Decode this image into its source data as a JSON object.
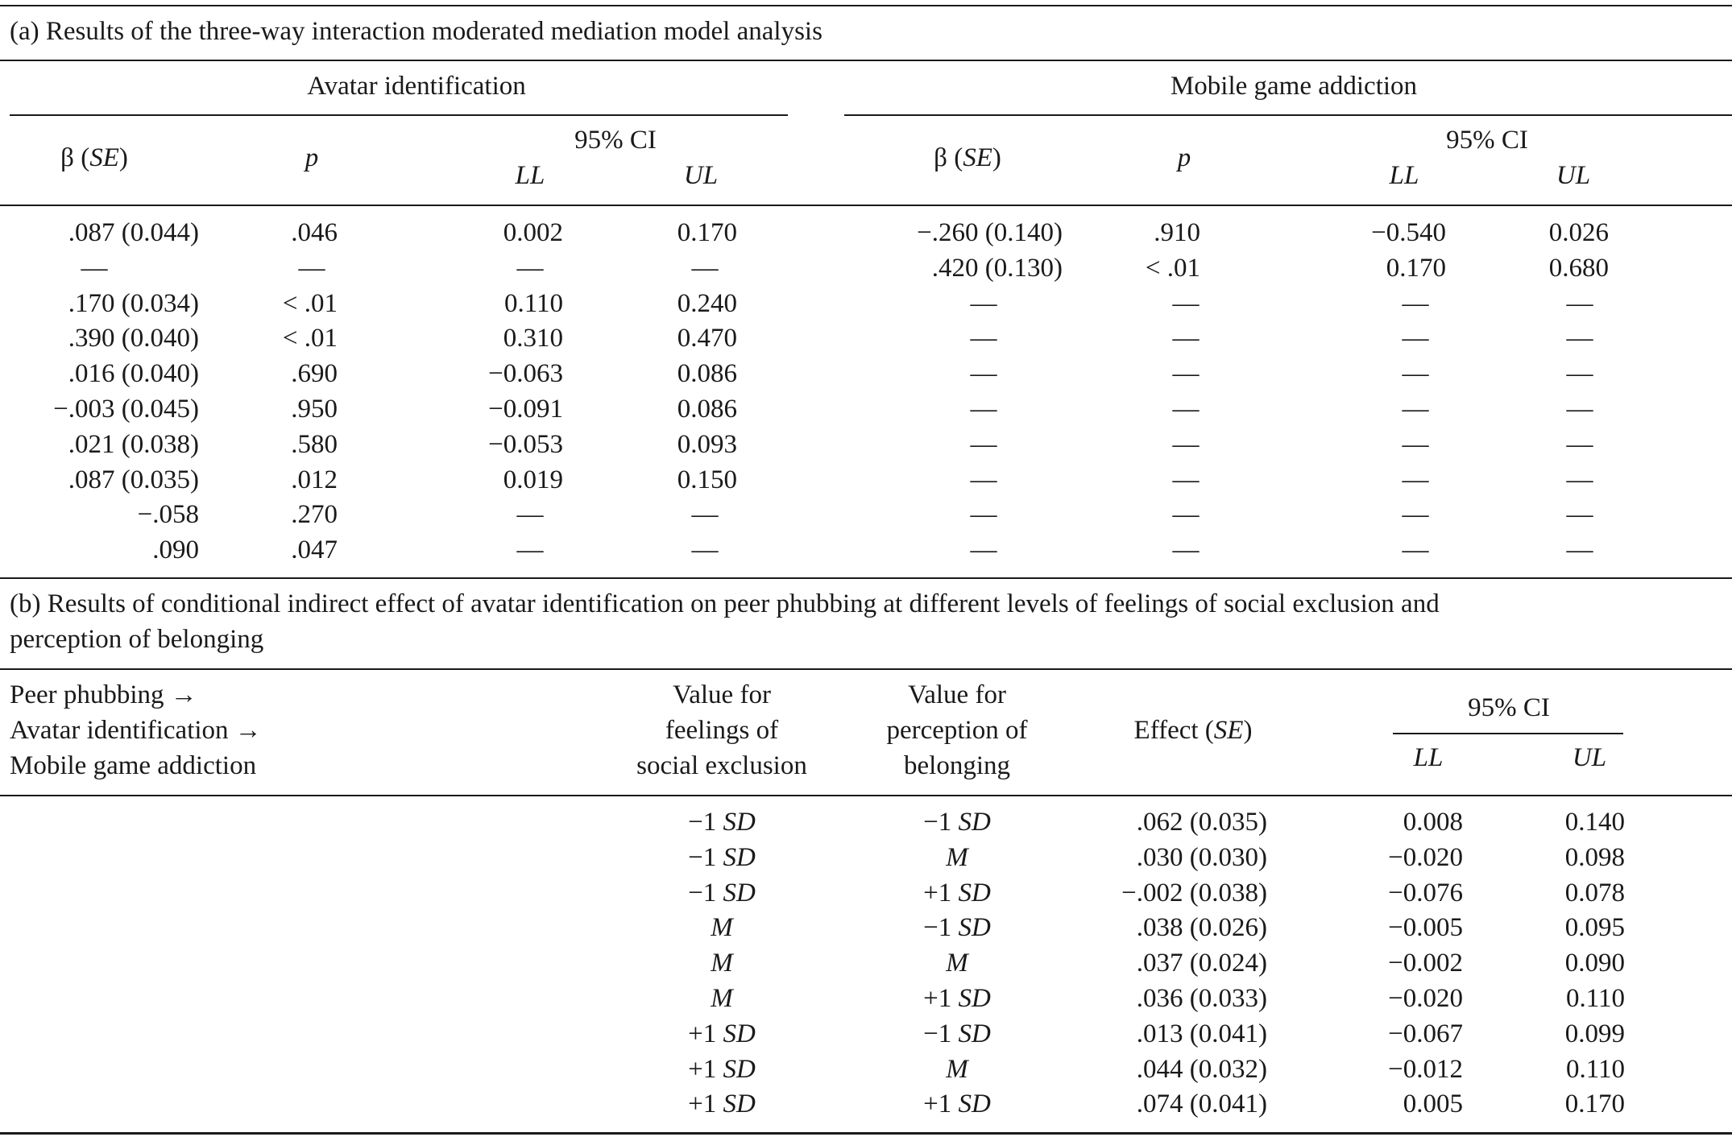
{
  "part_a": {
    "caption": "(a) Results of the three-way interaction moderated mediation model analysis",
    "group_headers": [
      "Avatar identification",
      "Mobile game addiction"
    ],
    "col_headers": {
      "beta": "β",
      "se": "SE",
      "p": "p",
      "ci": "95% CI",
      "ll": "LL",
      "ul": "UL"
    },
    "rows": [
      [
        ".087 (0.044)",
        ".046",
        "0.002",
        "0.170",
        "−.260 (0.140)",
        ".910",
        "−0.540",
        "0.026"
      ],
      [
        "—",
        "—",
        "—",
        "—",
        ".420 (0.130)",
        "< .01",
        "0.170",
        "0.680"
      ],
      [
        ".170 (0.034)",
        "< .01",
        "0.110",
        "0.240",
        "—",
        "—",
        "—",
        "—"
      ],
      [
        ".390 (0.040)",
        "< .01",
        "0.310",
        "0.470",
        "—",
        "—",
        "—",
        "—"
      ],
      [
        ".016 (0.040)",
        ".690",
        "−0.063",
        "0.086",
        "—",
        "—",
        "—",
        "—"
      ],
      [
        "−.003 (0.045)",
        ".950",
        "−0.091",
        "0.086",
        "—",
        "—",
        "—",
        "—"
      ],
      [
        ".021 (0.038)",
        ".580",
        "−0.053",
        "0.093",
        "—",
        "—",
        "—",
        "—"
      ],
      [
        ".087 (0.035)",
        ".012",
        "0.019",
        "0.150",
        "—",
        "—",
        "—",
        "—"
      ],
      [
        "−.058",
        ".270",
        "—",
        "—",
        "—",
        "—",
        "—",
        "—"
      ],
      [
        ".090",
        ".047",
        "—",
        "—",
        "—",
        "—",
        "—",
        "—"
      ]
    ]
  },
  "part_b": {
    "caption_line1": "(b) Results of conditional indirect effect of avatar identification on peer phubbing at different levels of feelings of social exclusion and",
    "caption_line2": "perception of belonging",
    "path_lines": [
      "Peer phubbing →",
      "Avatar identification →",
      "Mobile game addiction"
    ],
    "col_exclusion": [
      "Value for",
      "feelings of",
      "social exclusion"
    ],
    "col_belonging": [
      "Value for",
      "perception of",
      "belonging"
    ],
    "col_effect": "Effect",
    "col_se": "SE",
    "ci": "95% CI",
    "ll": "LL",
    "ul": "UL",
    "rows": [
      [
        [
          "−1 ",
          "SD"
        ],
        [
          "−1 ",
          "SD"
        ],
        ".062 (0.035)",
        "0.008",
        "0.140"
      ],
      [
        [
          "−1 ",
          "SD"
        ],
        [
          "",
          "M"
        ],
        ".030 (0.030)",
        "−0.020",
        "0.098"
      ],
      [
        [
          "−1 ",
          "SD"
        ],
        [
          "+1 ",
          "SD"
        ],
        "−.002 (0.038)",
        "−0.076",
        "0.078"
      ],
      [
        [
          "",
          "M"
        ],
        [
          "−1 ",
          "SD"
        ],
        ".038 (0.026)",
        "−0.005",
        "0.095"
      ],
      [
        [
          "",
          "M"
        ],
        [
          "",
          "M"
        ],
        ".037 (0.024)",
        "−0.002",
        "0.090"
      ],
      [
        [
          "",
          "M"
        ],
        [
          "+1 ",
          "SD"
        ],
        ".036 (0.033)",
        "−0.020",
        "0.110"
      ],
      [
        [
          "+1 ",
          "SD"
        ],
        [
          "−1 ",
          "SD"
        ],
        ".013 (0.041)",
        "−0.067",
        "0.099"
      ],
      [
        [
          "+1 ",
          "SD"
        ],
        [
          "",
          "M"
        ],
        ".044 (0.032)",
        "−0.012",
        "0.110"
      ],
      [
        [
          "+1 ",
          "SD"
        ],
        [
          "+1 ",
          "SD"
        ],
        ".074 (0.041)",
        "0.005",
        "0.170"
      ]
    ]
  }
}
